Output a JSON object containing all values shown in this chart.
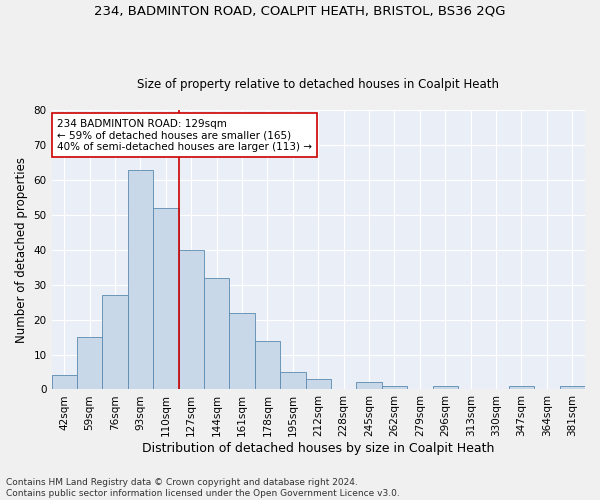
{
  "title1": "234, BADMINTON ROAD, COALPIT HEATH, BRISTOL, BS36 2QG",
  "title2": "Size of property relative to detached houses in Coalpit Heath",
  "xlabel": "Distribution of detached houses by size in Coalpit Heath",
  "ylabel": "Number of detached properties",
  "footnote": "Contains HM Land Registry data © Crown copyright and database right 2024.\nContains public sector information licensed under the Open Government Licence v3.0.",
  "bar_labels": [
    "42sqm",
    "59sqm",
    "76sqm",
    "93sqm",
    "110sqm",
    "127sqm",
    "144sqm",
    "161sqm",
    "178sqm",
    "195sqm",
    "212sqm",
    "228sqm",
    "245sqm",
    "262sqm",
    "279sqm",
    "296sqm",
    "313sqm",
    "330sqm",
    "347sqm",
    "364sqm",
    "381sqm"
  ],
  "bar_values": [
    4,
    15,
    27,
    63,
    52,
    40,
    32,
    22,
    14,
    5,
    3,
    0,
    2,
    1,
    0,
    1,
    0,
    0,
    1,
    0,
    1
  ],
  "bar_color": "#c8d8e8",
  "bar_edge_color": "#5a8ab0",
  "vline_x": 4.5,
  "vline_color": "#cc0000",
  "annotation_text": "234 BADMINTON ROAD: 129sqm\n← 59% of detached houses are smaller (165)\n40% of semi-detached houses are larger (113) →",
  "annotation_box_color": "#ffffff",
  "annotation_box_edge": "#cc0000",
  "ylim": [
    0,
    80
  ],
  "yticks": [
    0,
    10,
    20,
    30,
    40,
    50,
    60,
    70,
    80
  ],
  "background_color": "#eaeff7",
  "grid_color": "#ffffff",
  "fig_background": "#f0f0f0",
  "title1_fontsize": 9.5,
  "title2_fontsize": 8.5,
  "xlabel_fontsize": 9,
  "ylabel_fontsize": 8.5,
  "annotation_fontsize": 7.5,
  "tick_fontsize": 7.5,
  "footnote_fontsize": 6.5
}
